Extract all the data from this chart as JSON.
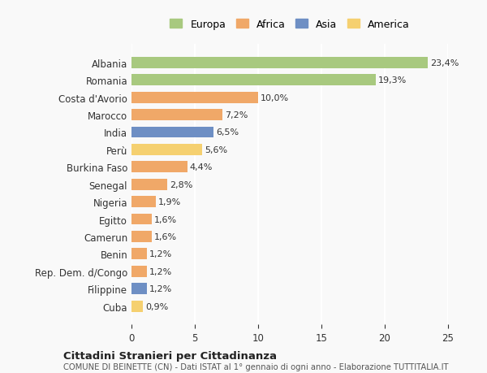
{
  "categories": [
    "Albania",
    "Romania",
    "Costa d'Avorio",
    "Marocco",
    "India",
    "Perù",
    "Burkina Faso",
    "Senegal",
    "Nigeria",
    "Egitto",
    "Camerun",
    "Benin",
    "Rep. Dem. d/Congo",
    "Filippine",
    "Cuba"
  ],
  "values": [
    23.4,
    19.3,
    10.0,
    7.2,
    6.5,
    5.6,
    4.4,
    2.8,
    1.9,
    1.6,
    1.6,
    1.2,
    1.2,
    1.2,
    0.9
  ],
  "labels": [
    "23,4%",
    "19,3%",
    "10,0%",
    "7,2%",
    "6,5%",
    "5,6%",
    "4,4%",
    "2,8%",
    "1,9%",
    "1,6%",
    "1,6%",
    "1,2%",
    "1,2%",
    "1,2%",
    "0,9%"
  ],
  "colors": [
    "#a8c97f",
    "#a8c97f",
    "#f0a868",
    "#f0a868",
    "#6e8fc4",
    "#f5d070",
    "#f0a868",
    "#f0a868",
    "#f0a868",
    "#f0a868",
    "#f0a868",
    "#f0a868",
    "#f0a868",
    "#6e8fc4",
    "#f5d070"
  ],
  "legend": [
    {
      "label": "Europa",
      "color": "#a8c97f"
    },
    {
      "label": "Africa",
      "color": "#f0a868"
    },
    {
      "label": "Asia",
      "color": "#6e8fc4"
    },
    {
      "label": "America",
      "color": "#f5d070"
    }
  ],
  "xlim": [
    0,
    25
  ],
  "xticks": [
    0,
    5,
    10,
    15,
    20,
    25
  ],
  "title": "Cittadini Stranieri per Cittadinanza",
  "subtitle": "COMUNE DI BEINETTE (CN) - Dati ISTAT al 1° gennaio di ogni anno - Elaborazione TUTTITALIA.IT",
  "bg_color": "#f9f9f9",
  "grid_color": "#ffffff",
  "bar_edge_color": "none"
}
